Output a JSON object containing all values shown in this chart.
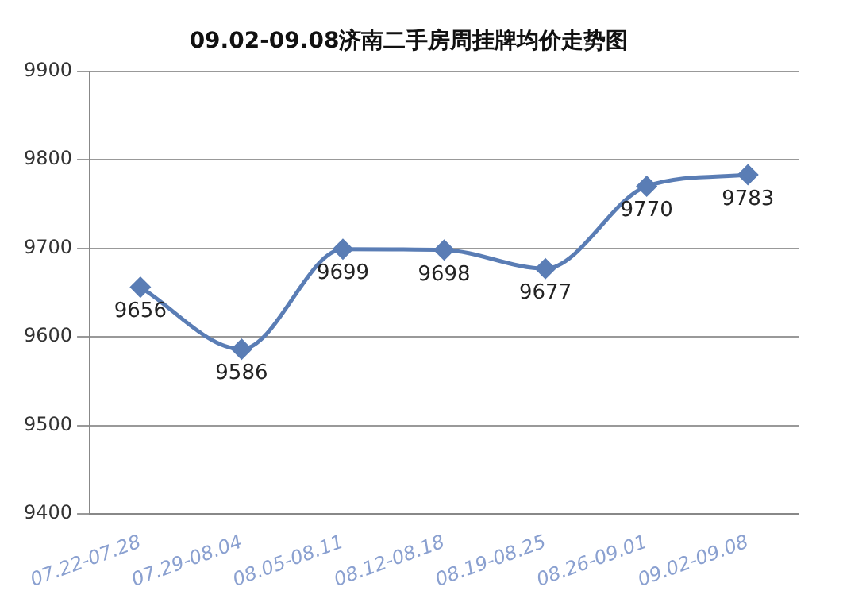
{
  "chart_data": {
    "type": "line",
    "title": "09.02-09.08济南二手房周挂牌均价走势图",
    "categories": [
      "07.22-07.28",
      "07.29-08.04",
      "08.05-08.11",
      "08.12-08.18",
      "08.19-08.25",
      "08.26-09.01",
      "09.02-09.08"
    ],
    "series": [
      {
        "color": "#5a7db5",
        "values": [
          9656,
          9586,
          9699,
          9698,
          9677,
          9770,
          9783
        ]
      }
    ],
    "ylim": [
      9400,
      9900
    ],
    "yticks": [
      9400,
      9500,
      9600,
      9700,
      9800,
      9900
    ],
    "grid": "y",
    "legend": false,
    "marker": "diamond",
    "line_style": "solid",
    "data_labels": true
  }
}
